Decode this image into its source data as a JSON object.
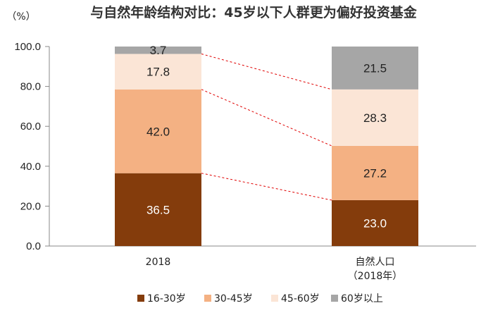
{
  "chart_data": {
    "type": "bar",
    "stacked": true,
    "title": "与自然年龄结构对比：45岁以下人群更为偏好投资基金",
    "unit": "（%）",
    "categories": [
      {
        "line1": "2018",
        "line2": ""
      },
      {
        "line1": "自然人口",
        "line2": "（2018年）"
      }
    ],
    "series": [
      {
        "name": "16-30岁",
        "color": "#843C0C",
        "label_color": "#ffffff",
        "values": [
          36.5,
          23.0
        ]
      },
      {
        "name": "30-45岁",
        "color": "#F4B183",
        "label_color": "#222222",
        "values": [
          42.0,
          27.2
        ]
      },
      {
        "name": "45-60岁",
        "color": "#FBE5D6",
        "label_color": "#222222",
        "values": [
          17.8,
          28.3
        ]
      },
      {
        "name": "60岁以上",
        "color": "#A6A6A6",
        "label_color": "#222222",
        "values": [
          3.7,
          21.5
        ]
      }
    ],
    "ylim": [
      0,
      100
    ],
    "yticks": [
      "0.0",
      "20.0",
      "40.0",
      "60.0",
      "80.0",
      "100.0"
    ],
    "connector_color": "#E00000",
    "connector_style": "dashed",
    "grid": false,
    "legend_position": "bottom"
  }
}
